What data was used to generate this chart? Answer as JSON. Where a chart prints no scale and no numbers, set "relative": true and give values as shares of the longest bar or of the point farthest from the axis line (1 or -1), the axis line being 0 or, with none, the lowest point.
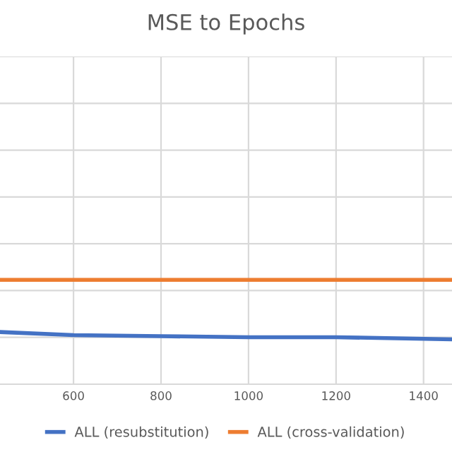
{
  "chart_data": {
    "type": "line",
    "title": "MSE to Epochs",
    "relative": true,
    "xlim": [
      432,
      1465
    ],
    "xticks": [
      600,
      800,
      1000,
      1200,
      1400
    ],
    "grid": true,
    "legend": "bottom",
    "line_style": "solid",
    "series": [
      {
        "name": "ALL (resubstitution)",
        "color": "#4472c4",
        "x": [
          432,
          600,
          800,
          1000,
          1200,
          1465
        ],
        "values": [
          0.5,
          0.47,
          0.46,
          0.45,
          0.45,
          0.43
        ]
      },
      {
        "name": "ALL (cross-validation)",
        "color": "#ed7d31",
        "x": [
          432,
          1465
        ],
        "values": [
          1,
          1
        ]
      }
    ]
  }
}
